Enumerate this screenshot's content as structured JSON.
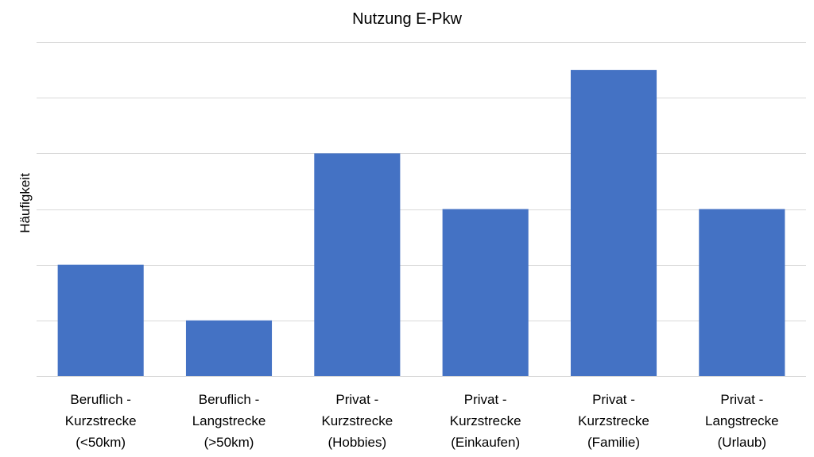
{
  "chart_data": {
    "type": "bar",
    "title": "Nutzung E-Pkw",
    "xlabel": "",
    "ylabel": "Häufigkeit",
    "categories": [
      "Beruflich - Kurzstrecke (<50km)",
      "Beruflich - Langstrecke (>50km)",
      "Privat - Kurzstrecke (Hobbies)",
      "Privat - Kurzstrecke (Einkaufen)",
      "Privat - Kurzstrecke (Familie)",
      "Privat - Langstrecke (Urlaub)"
    ],
    "category_lines": [
      [
        "Beruflich -",
        "Kurzstrecke",
        "(<50km)"
      ],
      [
        "Beruflich -",
        "Langstrecke",
        "(>50km)"
      ],
      [
        "Privat -",
        "Kurzstrecke",
        "(Hobbies)"
      ],
      [
        "Privat -",
        "Kurzstrecke",
        "(Einkaufen)"
      ],
      [
        "Privat -",
        "Kurzstrecke",
        "(Familie)"
      ],
      [
        "Privat -",
        "Langstrecke",
        "(Urlaub)"
      ]
    ],
    "values": [
      2,
      1,
      4,
      3,
      5.5,
      3
    ],
    "ylim": [
      0,
      6
    ],
    "grid": true,
    "colors": {
      "bar": "#4472C4",
      "grid": "#d9d9d9"
    }
  }
}
